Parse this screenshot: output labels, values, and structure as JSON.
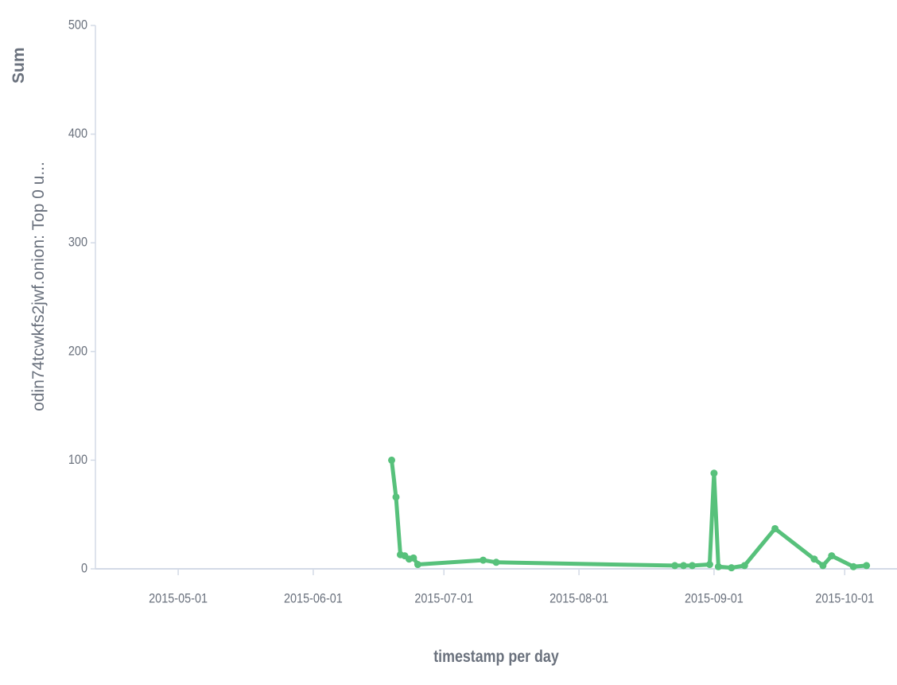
{
  "chart_data": {
    "type": "line",
    "ylabel": [
      "Sum",
      "odin74tcwkfs2jwf.onion: Top 0 u..."
    ],
    "xlabel": "timestamp per day",
    "x": [
      "2015-06-19",
      "2015-06-20",
      "2015-06-21",
      "2015-06-22",
      "2015-06-23",
      "2015-06-24",
      "2015-06-25",
      "2015-07-10",
      "2015-07-13",
      "2015-08-23",
      "2015-08-25",
      "2015-08-27",
      "2015-08-31",
      "2015-09-01",
      "2015-09-02",
      "2015-09-05",
      "2015-09-08",
      "2015-09-15",
      "2015-09-24",
      "2015-09-26",
      "2015-09-28",
      "2015-10-03",
      "2015-10-06"
    ],
    "series": [
      {
        "name": "odin74tcwkfs2jwf.onion",
        "color": "#57c17b",
        "values": [
          100,
          66,
          13,
          12,
          9,
          10,
          4,
          8,
          6,
          3,
          3,
          3,
          4,
          88,
          2,
          1,
          3,
          37,
          9,
          3,
          12,
          2,
          3
        ]
      }
    ],
    "xlim": [
      "2015-04-12",
      "2015-10-13"
    ],
    "xticks": [
      "2015-05-01",
      "2015-06-01",
      "2015-07-01",
      "2015-08-01",
      "2015-09-01",
      "2015-10-01"
    ],
    "ylim": [
      0,
      500
    ],
    "yticks": [
      0,
      100,
      200,
      300,
      400,
      500
    ]
  }
}
